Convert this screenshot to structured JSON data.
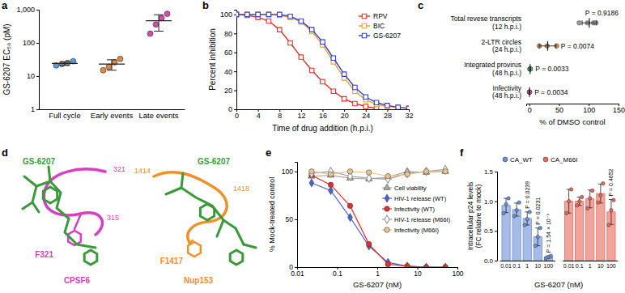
{
  "chart_data": [
    {
      "panel": "a",
      "type": "scatter",
      "log": "y",
      "y_label": "GS-6207 EC₅₀ (pM)",
      "categories": [
        "Full cycle",
        "Early events",
        "Late events"
      ],
      "colors": [
        "#5b9bd5",
        "#d9894a",
        "#d24fa6"
      ],
      "values": [
        [
          21,
          23,
          25,
          28
        ],
        [
          15,
          19,
          26,
          33
        ],
        [
          190,
          360,
          560,
          750
        ]
      ],
      "mean": [
        24,
        23,
        465
      ],
      "sd": [
        3,
        8,
        240
      ],
      "ylim": [
        1,
        1000
      ],
      "yticks": [
        1,
        10,
        100,
        {
          "value": 1000,
          "label": "1,000"
        }
      ]
    },
    {
      "panel": "b",
      "type": "line",
      "x_label": "Time of drug addition (h.p.i.)",
      "y_label": "Percent inhibition",
      "x": [
        0,
        2,
        4,
        6,
        8,
        10,
        12,
        14,
        16,
        18,
        20,
        22,
        24,
        26,
        28,
        30,
        32
      ],
      "xlim": [
        0,
        32
      ],
      "xticks": [
        0,
        4,
        8,
        12,
        16,
        20,
        24,
        28,
        32
      ],
      "ylim": [
        0,
        105
      ],
      "yticks": [
        0,
        20,
        40,
        60,
        80,
        100
      ],
      "legend": "top-right",
      "series": [
        {
          "name": "RPV",
          "color": "#e0302a",
          "marker": "square-open",
          "values": [
            100,
            99,
            97,
            93,
            84,
            70,
            55,
            41,
            29,
            19,
            11,
            6,
            3,
            1,
            null,
            null,
            null
          ]
        },
        {
          "name": "BIC",
          "color": "#f0a030",
          "marker": "square-open",
          "values": [
            100,
            100,
            100,
            100,
            99,
            97,
            92,
            82,
            68,
            50,
            33,
            19,
            10,
            5,
            3,
            2,
            1
          ]
        },
        {
          "name": "GS-6207",
          "color": "#3040d0",
          "marker": "square-open",
          "values": [
            100,
            100,
            100,
            100,
            100,
            98,
            93,
            84,
            71,
            54,
            37,
            23,
            13,
            7,
            4,
            2,
            1
          ]
        }
      ]
    },
    {
      "panel": "c",
      "type": "scatter",
      "orientation": "horizontal",
      "x_label": "% of DMSO control",
      "categories": [
        "Total revese transcripts (12 h.p.i.)",
        "2-LTR circles (24 h.p.i.)",
        "Integrated provirus (48 h.p.i.)",
        "Infectivity (48 h.p.i.)"
      ],
      "colors": [
        "#9e9e9e",
        "#d9894a",
        "#3cb878",
        "#d24fa6"
      ],
      "values": [
        [
          84,
          98,
          108,
          112
        ],
        [
          17,
          30,
          46
        ],
        [
          1.0,
          1.6,
          2.2
        ],
        [
          0.3,
          0.5,
          0.8
        ]
      ],
      "mean": [
        101,
        31,
        1.6,
        0.5
      ],
      "sd": [
        12,
        14,
        0.6,
        0.25
      ],
      "p_values": [
        "P = 0.9186",
        "P = 0.0074",
        "P = 0.0033",
        "P = 0.0034"
      ],
      "xlim": [
        -5,
        150
      ],
      "xticks": [
        0,
        50,
        100,
        150
      ]
    },
    {
      "panel": "d",
      "type": "diagram",
      "color": "#3a9a3a",
      "structures": [
        {
          "ligand": "GS-6207",
          "protein": "CPSF6",
          "residue": "F321",
          "start": "321",
          "end": "315",
          "color": "#d63fc0"
        },
        {
          "ligand": "GS-6207",
          "protein": "Nup153",
          "residue": "F1417",
          "start": "1414",
          "end": "1418",
          "color": "#f0902a"
        }
      ]
    },
    {
      "panel": "e",
      "type": "line",
      "log": "x",
      "x_label": "GS-6207 (nM)",
      "y_label": "% Mock-treated control",
      "x": [
        0.023,
        0.069,
        0.21,
        0.62,
        1.85,
        5.6,
        16.7,
        50
      ],
      "xlim": [
        0.01,
        100
      ],
      "xticks": [
        0.01,
        0.1,
        1,
        10,
        100
      ],
      "ylim": [
        0,
        110
      ],
      "yticks": [
        0,
        50,
        100
      ],
      "legend": "right",
      "series": [
        {
          "name": "Cell viability",
          "color": "#a8a8a8",
          "marker": "triangle",
          "values": [
            95,
            96,
            93,
            92,
            94,
            100,
            99,
            100
          ]
        },
        {
          "name": "HIV-1 release (WT)",
          "color": "#4a62d0",
          "marker": "diamond",
          "values": [
            88,
            80,
            52,
            22,
            5,
            1,
            0,
            0
          ]
        },
        {
          "name": "Infectivity (WT)",
          "color": "#e0302a",
          "marker": "circle",
          "values": [
            96,
            86,
            64,
            24,
            3,
            1,
            0,
            0
          ]
        },
        {
          "name": "HIV-1 release (M66I)",
          "color": "#9a9a9a",
          "marker": "diamond-open",
          "values": [
            98,
            100,
            95,
            93,
            92,
            98,
            100,
            102
          ]
        },
        {
          "name": "Infectivity (M66I)",
          "color": "#e8c28c",
          "marker": "circle",
          "values": [
            100,
            97,
            100,
            99,
            95,
            97,
            100,
            100
          ]
        }
      ]
    },
    {
      "panel": "f",
      "type": "bar",
      "x_label": "GS-6207 (nM)",
      "y_label": "Intracellular p24 levels (FC relative to mock)",
      "categories": [
        "0.01",
        "0.1",
        "1",
        "10",
        "100"
      ],
      "ylim": [
        0,
        1.5
      ],
      "yticks": [
        {
          "value": 0,
          "label": "0.0"
        },
        {
          "value": 0.5,
          "label": "0.5"
        },
        {
          "value": 1,
          "label": "1.0"
        },
        {
          "value": 1.5,
          "label": "1.5"
        }
      ],
      "legend": "top",
      "series": [
        {
          "name": "CA_WT",
          "color": "#6b8fd6",
          "values": [
            0.93,
            0.86,
            0.71,
            0.4,
            0.06
          ],
          "errors": [
            0.12,
            0.11,
            0.11,
            0.15,
            0.02
          ],
          "points": [
            [
              0.8,
              0.95,
              1.05
            ],
            [
              0.75,
              0.85,
              0.98
            ],
            [
              0.6,
              0.7,
              0.82
            ],
            [
              0.25,
              0.4,
              0.55
            ],
            [
              0.04,
              0.06,
              0.08
            ]
          ],
          "p_values": [
            null,
            null,
            "P = 0.0239",
            "P = 0.0231",
            "P = 1.54 × 10⁻⁵"
          ]
        },
        {
          "name": "CA_M66I",
          "color": "#e8685a",
          "values": [
            1.0,
            1.0,
            1.04,
            1.13,
            0.82
          ],
          "errors": [
            0.2,
            0.07,
            0.15,
            0.16,
            0.21
          ],
          "points": [
            [
              0.8,
              1.0,
              1.2
            ],
            [
              0.93,
              1.0,
              1.07
            ],
            [
              0.88,
              1.05,
              1.18
            ],
            [
              0.98,
              1.1,
              1.3
            ],
            [
              0.6,
              0.85,
              1.02
            ]
          ],
          "p_values": [
            null,
            null,
            null,
            null,
            "P = 0.4652"
          ]
        }
      ]
    }
  ]
}
